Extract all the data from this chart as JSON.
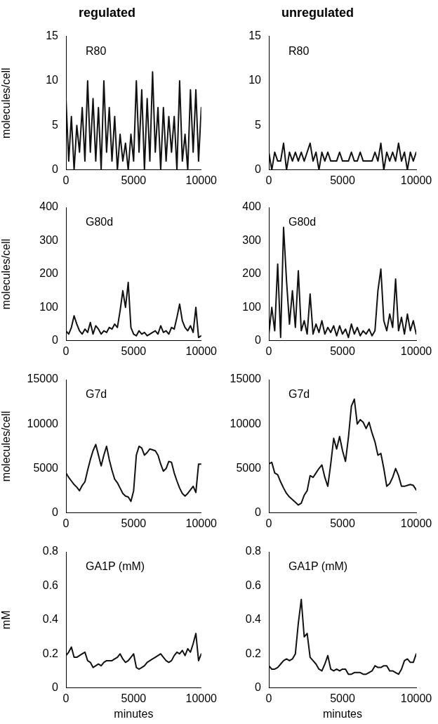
{
  "chart_data": [
    {
      "type": "line",
      "title": "regulated",
      "ylabel": "molecules/cell",
      "annotations": [
        "R80"
      ],
      "color": "#111111",
      "grid": false,
      "legend": false,
      "xlim": [
        0,
        10000
      ],
      "xticks": [
        0,
        5000,
        10000
      ],
      "ylim": [
        0,
        15
      ],
      "yticks": [
        0,
        5,
        10,
        15
      ],
      "x": [
        0,
        200,
        400,
        600,
        800,
        1000,
        1200,
        1400,
        1600,
        1800,
        2000,
        2200,
        2400,
        2600,
        2800,
        3000,
        3200,
        3400,
        3600,
        3800,
        4000,
        4200,
        4400,
        4600,
        4800,
        5000,
        5200,
        5400,
        5600,
        5800,
        6000,
        6200,
        6400,
        6600,
        6800,
        7000,
        7200,
        7400,
        7600,
        7800,
        8000,
        8200,
        8400,
        8600,
        8800,
        9000,
        9200,
        9400,
        9600,
        9800,
        10000
      ],
      "values": [
        8,
        1,
        6,
        0,
        5,
        2,
        7,
        1,
        10,
        2,
        8,
        1,
        7,
        0,
        10,
        2,
        7,
        1,
        6,
        0,
        4,
        1,
        3,
        0,
        4,
        1,
        10,
        2,
        9,
        0,
        8,
        1,
        11,
        2,
        7,
        0,
        7,
        1,
        6,
        2,
        6,
        0,
        10,
        1,
        4,
        0,
        9,
        2,
        9,
        1,
        7
      ]
    },
    {
      "type": "line",
      "title": "unregulated",
      "annotations": [
        "R80"
      ],
      "color": "#111111",
      "grid": false,
      "legend": false,
      "xlim": [
        0,
        10000
      ],
      "xticks": [
        0,
        5000,
        10000
      ],
      "ylim": [
        0,
        15
      ],
      "yticks": [
        0,
        5,
        10,
        15
      ],
      "x": [
        0,
        200,
        400,
        600,
        800,
        1000,
        1200,
        1400,
        1600,
        1800,
        2000,
        2200,
        2400,
        2600,
        2800,
        3000,
        3200,
        3400,
        3600,
        3800,
        4000,
        4200,
        4400,
        4600,
        4800,
        5000,
        5200,
        5400,
        5600,
        5800,
        6000,
        6200,
        6400,
        6600,
        6800,
        7000,
        7200,
        7400,
        7600,
        7800,
        8000,
        8200,
        8400,
        8600,
        8800,
        9000,
        9200,
        9400,
        9600,
        9800,
        10000
      ],
      "values": [
        2,
        0,
        2,
        1,
        1,
        3,
        0,
        2,
        1,
        2,
        1,
        2,
        1,
        2,
        3,
        1,
        2,
        0,
        2,
        1,
        2,
        1,
        1,
        1,
        2,
        1,
        1,
        1,
        2,
        1,
        1,
        2,
        1,
        1,
        1,
        1,
        2,
        1,
        3,
        0,
        2,
        1,
        2,
        1,
        3,
        1,
        2,
        0,
        2,
        1,
        2
      ]
    },
    {
      "type": "line",
      "ylabel": "molecules/cell",
      "annotations": [
        "G80d"
      ],
      "color": "#111111",
      "grid": false,
      "legend": false,
      "xlim": [
        0,
        10000
      ],
      "xticks": [
        0,
        5000,
        10000
      ],
      "ylim": [
        0,
        400
      ],
      "yticks": [
        0,
        100,
        200,
        300,
        400
      ],
      "x": [
        0,
        200,
        400,
        600,
        800,
        1000,
        1200,
        1400,
        1600,
        1800,
        2000,
        2200,
        2400,
        2600,
        2800,
        3000,
        3200,
        3400,
        3600,
        3800,
        4000,
        4200,
        4400,
        4600,
        4800,
        5000,
        5200,
        5400,
        5600,
        5800,
        6000,
        6200,
        6400,
        6600,
        6800,
        7000,
        7200,
        7400,
        7600,
        7800,
        8000,
        8200,
        8400,
        8600,
        8800,
        9000,
        9200,
        9400,
        9600,
        9800,
        10000
      ],
      "values": [
        30,
        20,
        40,
        75,
        50,
        30,
        20,
        35,
        25,
        55,
        20,
        45,
        35,
        20,
        30,
        25,
        40,
        35,
        50,
        40,
        90,
        150,
        100,
        175,
        40,
        20,
        15,
        30,
        20,
        25,
        15,
        20,
        25,
        30,
        20,
        45,
        25,
        30,
        20,
        40,
        35,
        70,
        110,
        60,
        40,
        30,
        45,
        25,
        100,
        10,
        15
      ]
    },
    {
      "type": "line",
      "annotations": [
        "G80d"
      ],
      "color": "#111111",
      "grid": false,
      "legend": false,
      "xlim": [
        0,
        10000
      ],
      "xticks": [
        0,
        5000,
        10000
      ],
      "ylim": [
        0,
        400
      ],
      "yticks": [
        0,
        100,
        200,
        300,
        400
      ],
      "x": [
        0,
        200,
        400,
        600,
        800,
        1000,
        1200,
        1400,
        1600,
        1800,
        2000,
        2200,
        2400,
        2600,
        2800,
        3000,
        3200,
        3400,
        3600,
        3800,
        4000,
        4200,
        4400,
        4600,
        4800,
        5000,
        5200,
        5400,
        5600,
        5800,
        6000,
        6200,
        6400,
        6600,
        6800,
        7000,
        7200,
        7400,
        7600,
        7800,
        8000,
        8200,
        8400,
        8600,
        8800,
        9000,
        9200,
        9400,
        9600,
        9800,
        10000
      ],
      "values": [
        20,
        100,
        30,
        230,
        10,
        340,
        180,
        50,
        150,
        40,
        210,
        30,
        60,
        20,
        140,
        20,
        50,
        25,
        60,
        20,
        40,
        25,
        45,
        15,
        45,
        20,
        35,
        10,
        50,
        20,
        40,
        15,
        30,
        20,
        35,
        15,
        30,
        150,
        215,
        60,
        30,
        80,
        40,
        185,
        30,
        70,
        20,
        80,
        30,
        60,
        20
      ]
    },
    {
      "type": "line",
      "ylabel": "molecules/cell",
      "annotations": [
        "G7d"
      ],
      "color": "#111111",
      "grid": false,
      "legend": false,
      "xlim": [
        0,
        10000
      ],
      "xticks": [
        0,
        5000,
        10000
      ],
      "ylim": [
        0,
        15000
      ],
      "yticks": [
        0,
        5000,
        10000,
        15000
      ],
      "x": [
        0,
        200,
        400,
        600,
        800,
        1000,
        1200,
        1400,
        1600,
        1800,
        2000,
        2200,
        2400,
        2600,
        2800,
        3000,
        3200,
        3400,
        3600,
        3800,
        4000,
        4200,
        4400,
        4600,
        4800,
        5000,
        5200,
        5400,
        5600,
        5800,
        6000,
        6200,
        6400,
        6600,
        6800,
        7000,
        7200,
        7400,
        7600,
        7800,
        8000,
        8200,
        8400,
        8600,
        8800,
        9000,
        9200,
        9400,
        9600,
        9800,
        10000
      ],
      "values": [
        4500,
        4000,
        3600,
        3200,
        2900,
        2500,
        3100,
        3500,
        4800,
        6000,
        7000,
        7700,
        6500,
        5300,
        6500,
        7500,
        6000,
        4800,
        3800,
        3400,
        2800,
        2200,
        1900,
        1800,
        1300,
        2500,
        6500,
        7500,
        7300,
        6500,
        6800,
        7200,
        7100,
        7000,
        6500,
        5500,
        4700,
        5000,
        5800,
        5700,
        4500,
        3600,
        2800,
        2200,
        1900,
        2200,
        2600,
        3000,
        2300,
        5500,
        5500
      ]
    },
    {
      "type": "line",
      "annotations": [
        "G7d"
      ],
      "color": "#111111",
      "grid": false,
      "legend": false,
      "xlim": [
        0,
        10000
      ],
      "xticks": [
        0,
        5000,
        10000
      ],
      "ylim": [
        0,
        15000
      ],
      "yticks": [
        0,
        5000,
        10000,
        15000
      ],
      "x": [
        0,
        200,
        400,
        600,
        800,
        1000,
        1200,
        1400,
        1600,
        1800,
        2000,
        2200,
        2400,
        2600,
        2800,
        3000,
        3200,
        3400,
        3600,
        3800,
        4000,
        4200,
        4400,
        4600,
        4800,
        5000,
        5200,
        5400,
        5600,
        5800,
        6000,
        6200,
        6400,
        6600,
        6800,
        7000,
        7200,
        7400,
        7600,
        7800,
        8000,
        8200,
        8400,
        8600,
        8800,
        9000,
        9200,
        9400,
        9600,
        9800,
        10000
      ],
      "values": [
        5500,
        5700,
        4500,
        4300,
        3500,
        2800,
        2200,
        1800,
        1500,
        1200,
        900,
        1100,
        2000,
        2500,
        4200,
        4000,
        4500,
        5000,
        5400,
        4000,
        3000,
        5500,
        8400,
        7200,
        8600,
        7000,
        5800,
        8500,
        12000,
        12800,
        10000,
        10500,
        10200,
        9500,
        10200,
        9000,
        8000,
        6500,
        6700,
        5000,
        3000,
        3300,
        4000,
        5000,
        4200,
        3000,
        3000,
        3100,
        3200,
        3100,
        2600
      ]
    },
    {
      "type": "line",
      "xlabel": "minutes",
      "ylabel": "mM",
      "annotations": [
        "GA1P (mM)"
      ],
      "color": "#111111",
      "grid": false,
      "legend": false,
      "xlim": [
        0,
        10000
      ],
      "xticks": [
        0,
        5000,
        10000
      ],
      "ylim": [
        0,
        0.8
      ],
      "yticks": [
        0,
        0.2,
        0.4,
        0.6,
        0.8
      ],
      "x": [
        0,
        200,
        400,
        600,
        800,
        1000,
        1200,
        1400,
        1600,
        1800,
        2000,
        2200,
        2400,
        2600,
        2800,
        3000,
        3200,
        3400,
        3600,
        3800,
        4000,
        4200,
        4400,
        4600,
        4800,
        5000,
        5200,
        5400,
        5600,
        5800,
        6000,
        6200,
        6400,
        6600,
        6800,
        7000,
        7200,
        7400,
        7600,
        7800,
        8000,
        8200,
        8400,
        8600,
        8800,
        9000,
        9200,
        9400,
        9600,
        9800,
        10000
      ],
      "values": [
        0.19,
        0.21,
        0.24,
        0.18,
        0.18,
        0.19,
        0.2,
        0.21,
        0.16,
        0.15,
        0.12,
        0.13,
        0.14,
        0.13,
        0.15,
        0.16,
        0.16,
        0.16,
        0.17,
        0.18,
        0.2,
        0.17,
        0.15,
        0.16,
        0.18,
        0.2,
        0.12,
        0.11,
        0.12,
        0.13,
        0.15,
        0.16,
        0.17,
        0.18,
        0.19,
        0.2,
        0.18,
        0.16,
        0.15,
        0.16,
        0.19,
        0.21,
        0.2,
        0.22,
        0.19,
        0.23,
        0.21,
        0.26,
        0.32,
        0.16,
        0.2
      ]
    },
    {
      "type": "line",
      "xlabel": "minutes",
      "annotations": [
        "GA1P (mM)"
      ],
      "color": "#111111",
      "grid": false,
      "legend": false,
      "xlim": [
        0,
        10000
      ],
      "xticks": [
        0,
        5000,
        10000
      ],
      "ylim": [
        0,
        0.8
      ],
      "yticks": [
        0,
        0.2,
        0.4,
        0.6,
        0.8
      ],
      "x": [
        0,
        200,
        400,
        600,
        800,
        1000,
        1200,
        1400,
        1600,
        1800,
        2000,
        2200,
        2400,
        2600,
        2800,
        3000,
        3200,
        3400,
        3600,
        3800,
        4000,
        4200,
        4400,
        4600,
        4800,
        5000,
        5200,
        5400,
        5600,
        5800,
        6000,
        6200,
        6400,
        6600,
        6800,
        7000,
        7200,
        7400,
        7600,
        7800,
        8000,
        8200,
        8400,
        8600,
        8800,
        9000,
        9200,
        9400,
        9600,
        9800,
        10000
      ],
      "values": [
        0.13,
        0.11,
        0.11,
        0.12,
        0.14,
        0.16,
        0.17,
        0.16,
        0.17,
        0.2,
        0.38,
        0.52,
        0.3,
        0.32,
        0.18,
        0.16,
        0.14,
        0.11,
        0.1,
        0.14,
        0.19,
        0.11,
        0.1,
        0.11,
        0.1,
        0.11,
        0.11,
        0.08,
        0.08,
        0.09,
        0.09,
        0.09,
        0.08,
        0.08,
        0.09,
        0.1,
        0.13,
        0.12,
        0.12,
        0.13,
        0.13,
        0.1,
        0.1,
        0.09,
        0.08,
        0.11,
        0.16,
        0.17,
        0.15,
        0.15,
        0.2
      ]
    }
  ]
}
